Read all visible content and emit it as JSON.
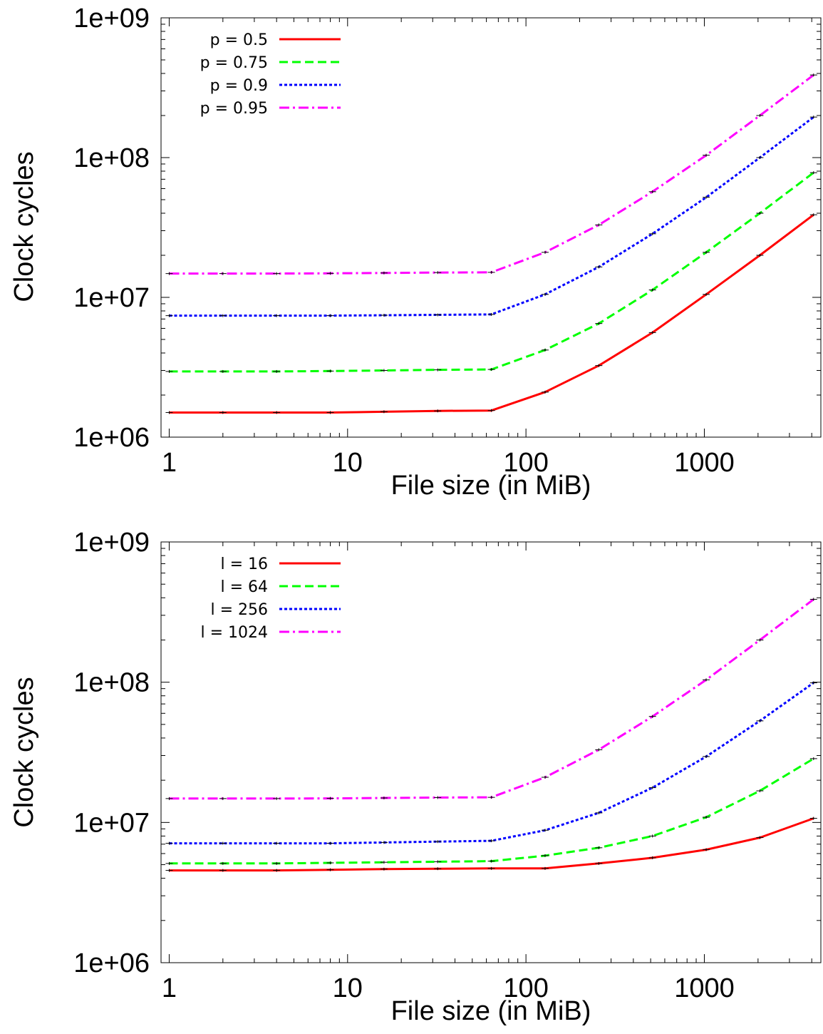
{
  "chart_data": [
    {
      "type": "line",
      "title": "",
      "xlabel": "File size (in MiB)",
      "ylabel": "Clock cycles",
      "x_scale": "log",
      "y_scale": "log",
      "xlim": [
        0.9,
        4500
      ],
      "ylim": [
        1000000,
        1000000000
      ],
      "x_ticks": [
        1,
        10,
        100,
        1000
      ],
      "x_tick_labels": [
        "1",
        "10",
        "100",
        "1000"
      ],
      "y_ticks": [
        1000000,
        10000000,
        100000000,
        1000000000
      ],
      "y_tick_labels": [
        "1e+06",
        "1e+07",
        "1e+08",
        "1e+09"
      ],
      "grid": false,
      "legend_position": "top-left",
      "x": [
        1,
        2,
        4,
        8,
        16,
        32,
        64,
        128,
        256,
        512,
        1024,
        2048,
        4096
      ],
      "series": [
        {
          "name": "p = 0.5",
          "color": "#ff0000",
          "dash": "solid",
          "values": [
            1500000,
            1500000,
            1500000,
            1500000,
            1520000,
            1540000,
            1550000,
            2100000,
            3250000,
            5600000,
            10500000,
            20000000,
            39000000
          ]
        },
        {
          "name": "p = 0.75",
          "color": "#00ff00",
          "dash": "dashed",
          "values": [
            2950000,
            2950000,
            2950000,
            2970000,
            3000000,
            3030000,
            3050000,
            4200000,
            6500000,
            11300000,
            21000000,
            40000000,
            78000000
          ]
        },
        {
          "name": "p = 0.9",
          "color": "#0000ff",
          "dash": "dotted",
          "values": [
            7400000,
            7400000,
            7400000,
            7400000,
            7450000,
            7500000,
            7550000,
            10500000,
            16500000,
            28500000,
            52000000,
            100000000,
            195000000
          ]
        },
        {
          "name": "p = 0.95",
          "color": "#ff00ff",
          "dash": "dashdot",
          "values": [
            14800000,
            14800000,
            14800000,
            14850000,
            14950000,
            15050000,
            15100000,
            21000000,
            33000000,
            57000000,
            104000000,
            200000000,
            390000000
          ]
        }
      ]
    },
    {
      "type": "line",
      "title": "",
      "xlabel": "File size (in MiB)",
      "ylabel": "Clock cycles",
      "x_scale": "log",
      "y_scale": "log",
      "xlim": [
        0.9,
        4500
      ],
      "ylim": [
        1000000,
        1000000000
      ],
      "x_ticks": [
        1,
        10,
        100,
        1000
      ],
      "x_tick_labels": [
        "1",
        "10",
        "100",
        "1000"
      ],
      "y_ticks": [
        1000000,
        10000000,
        100000000,
        1000000000
      ],
      "y_tick_labels": [
        "1e+06",
        "1e+07",
        "1e+08",
        "1e+09"
      ],
      "grid": false,
      "legend_position": "top-left",
      "x": [
        1,
        2,
        4,
        8,
        16,
        32,
        64,
        128,
        256,
        512,
        1024,
        2048,
        4096
      ],
      "series": [
        {
          "name": "l = 16",
          "color": "#ff0000",
          "dash": "solid",
          "values": [
            4550000,
            4550000,
            4550000,
            4600000,
            4650000,
            4680000,
            4700000,
            4700000,
            5100000,
            5600000,
            6400000,
            7800000,
            10700000
          ]
        },
        {
          "name": "l = 64",
          "color": "#00ff00",
          "dash": "dashed",
          "values": [
            5100000,
            5100000,
            5100000,
            5150000,
            5200000,
            5250000,
            5300000,
            5800000,
            6600000,
            8000000,
            10900000,
            16800000,
            28500000
          ]
        },
        {
          "name": "l = 256",
          "color": "#0000ff",
          "dash": "dotted",
          "values": [
            7100000,
            7100000,
            7100000,
            7100000,
            7200000,
            7300000,
            7400000,
            8800000,
            11700000,
            17700000,
            29500000,
            53000000,
            99000000
          ]
        },
        {
          "name": "l = 1024",
          "color": "#ff00ff",
          "dash": "dashdot",
          "values": [
            14800000,
            14800000,
            14800000,
            14850000,
            14950000,
            15050000,
            15100000,
            21000000,
            33000000,
            57000000,
            104000000,
            200000000,
            390000000
          ]
        }
      ]
    }
  ]
}
